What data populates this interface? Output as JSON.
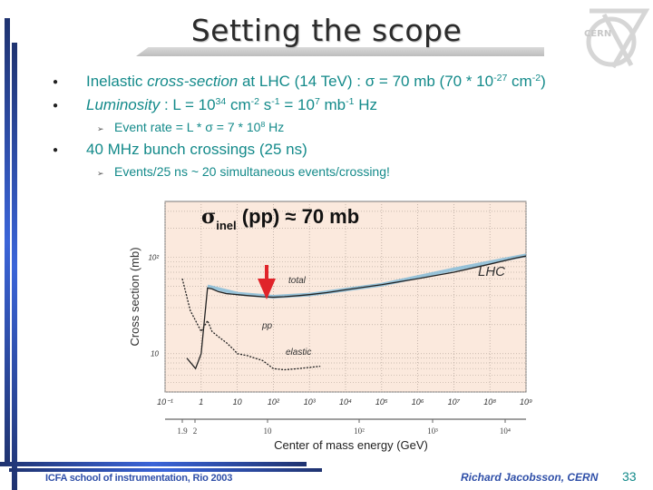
{
  "slide": {
    "title": "Setting the scope",
    "logo_text": "CERN",
    "bullets": [
      {
        "level": 1,
        "parts": [
          {
            "text": "Inelastic ",
            "style": "normal"
          },
          {
            "text": "cross-section",
            "style": "italic"
          },
          {
            "text": " at LHC (14 TeV) : σ = 70 mb  (70 * 10",
            "style": "normal"
          },
          {
            "text": "-27",
            "style": "sup"
          },
          {
            "text": " cm",
            "style": "normal"
          },
          {
            "text": "-2",
            "style": "sup"
          },
          {
            "text": ")",
            "style": "normal"
          }
        ]
      },
      {
        "level": 1,
        "parts": [
          {
            "text": "Luminosity",
            "style": "italic"
          },
          {
            "text": " : L = 10",
            "style": "normal"
          },
          {
            "text": "34",
            "style": "sup"
          },
          {
            "text": " cm",
            "style": "normal"
          },
          {
            "text": "-2",
            "style": "sup"
          },
          {
            "text": " s",
            "style": "normal"
          },
          {
            "text": "-1",
            "style": "sup"
          },
          {
            "text": " = 10",
            "style": "normal"
          },
          {
            "text": "7",
            "style": "sup"
          },
          {
            "text": " mb",
            "style": "normal"
          },
          {
            "text": "-1",
            "style": "sup"
          },
          {
            "text": " Hz",
            "style": "normal"
          }
        ]
      },
      {
        "level": 2,
        "parts": [
          {
            "text": "Event rate = L * σ  = 7 * 10",
            "style": "normal"
          },
          {
            "text": "8",
            "style": "sup"
          },
          {
            "text": " Hz",
            "style": "normal"
          }
        ]
      },
      {
        "level": 1,
        "parts": [
          {
            "text": "40 MHz bunch crossings (25 ns)",
            "style": "normal"
          }
        ]
      },
      {
        "level": 2,
        "parts": [
          {
            "text": "Events/25 ns ~ 20 simultaneous events/crossing!",
            "style": "normal"
          }
        ]
      }
    ],
    "bullet_glyph": "●",
    "sub_bullet_glyph": "➢",
    "footer_left": "ICFA school of instrumentation, Rio 2003",
    "footer_right": "Richard Jacobsson, CERN",
    "page_number": "33",
    "colors": {
      "body_text": "#138a8a",
      "footer_text": "#2f4fa8",
      "bar_dark": "#1f3370",
      "bar_light": "#3a64d8",
      "plot_bg": "#fbe9dd",
      "arrow": "#e0242a",
      "fit_band": "#7fb9d8"
    }
  },
  "chart_data": {
    "type": "scatter",
    "title": "σinel (pp) ≈ 70 mb",
    "title_main": "σ",
    "title_sub": "inel",
    "title_rest": " (pp) ≈ 70 mb",
    "xlabel": "Center of mass energy (GeV)",
    "ylabel": "Cross section (mb)",
    "xscale": "log",
    "yscale": "log",
    "x_top_ticks": [
      "10⁻¹",
      "1",
      "10",
      "10²",
      "10³",
      "10⁴",
      "10⁵",
      "10⁶",
      "10⁷",
      "10⁸",
      "10⁹"
    ],
    "x_top_tick_values": [
      0.1,
      1,
      10,
      100,
      1000,
      10000,
      100000,
      1000000,
      10000000,
      100000000,
      1000000000
    ],
    "x_bottom_ticks": [
      "1.9",
      "2",
      "10",
      "10²",
      "10³",
      "10⁴"
    ],
    "y_ticks": [
      "10",
      "10²"
    ],
    "y_tick_values": [
      10,
      100
    ],
    "xlim": [
      0.1,
      1000000000
    ],
    "ylim": [
      4,
      380
    ],
    "grid": true,
    "annotations": [
      {
        "text": "total",
        "x": 3000,
        "y": 55
      },
      {
        "text": "pp",
        "x": 500,
        "y": 22
      },
      {
        "text": "elastic",
        "x": 3000,
        "y": 12
      },
      {
        "text": "LHC",
        "x": 100000000,
        "y": 68
      },
      {
        "text": "red arrow marks minimum of total cross-section",
        "x": 100,
        "y": 40
      }
    ],
    "series": [
      {
        "name": "total",
        "x": [
          0.4,
          0.7,
          1,
          1.5,
          2,
          3,
          5,
          10,
          20,
          50,
          100,
          200,
          500,
          1000,
          3000,
          10000,
          100000,
          1000000,
          10000000,
          100000000,
          500000000,
          1000000000
        ],
        "y": [
          9,
          7,
          10,
          48,
          47,
          44,
          42,
          41,
          40,
          39,
          38.5,
          39,
          40,
          41,
          43,
          46,
          52,
          60,
          70,
          85,
          98,
          103
        ]
      },
      {
        "name": "elastic",
        "x": [
          0.3,
          0.5,
          0.8,
          1,
          1.5,
          2,
          3,
          5,
          8,
          10,
          20,
          30,
          50,
          100,
          200,
          500,
          1000,
          2000
        ],
        "y": [
          60,
          28,
          20,
          17,
          22,
          17,
          15,
          13,
          11,
          10,
          9.5,
          9,
          8.5,
          7,
          6.8,
          7,
          7.2,
          7.4
        ]
      },
      {
        "name": "fit band (total)",
        "x": [
          1.5,
          10,
          100,
          1000,
          100000,
          10000000,
          1000000000
        ],
        "y": [
          50,
          42,
          39,
          41,
          52,
          75,
          105
        ]
      }
    ]
  }
}
